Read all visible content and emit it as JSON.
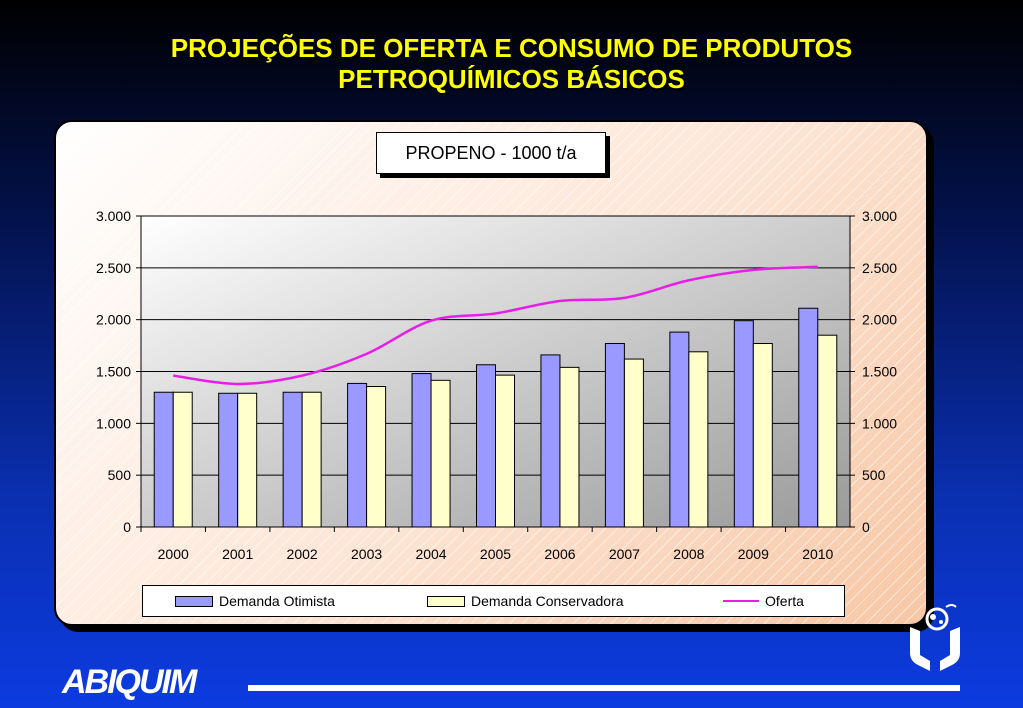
{
  "slide": {
    "title_line1": "PROJEÇÕES DE OFERTA E CONSUMO DE PRODUTOS",
    "title_line2": "PETROQUÍMICOS BÁSICOS",
    "brand": "ABIQUIM"
  },
  "chart_data": {
    "type": "bar",
    "title": "PROPENO - 1000 t/a",
    "categories": [
      "2000",
      "2001",
      "2002",
      "2003",
      "2004",
      "2005",
      "2006",
      "2007",
      "2008",
      "2009",
      "2010"
    ],
    "series": [
      {
        "name": "Demanda Otimista",
        "type": "bar",
        "color": "#9999ff",
        "values": [
          1300,
          1290,
          1300,
          1385,
          1480,
          1565,
          1660,
          1770,
          1880,
          1990,
          2110
        ]
      },
      {
        "name": "Demanda Conservadora",
        "type": "bar",
        "color": "#ffffcc",
        "values": [
          1300,
          1290,
          1300,
          1355,
          1415,
          1465,
          1540,
          1620,
          1690,
          1770,
          1850
        ]
      },
      {
        "name": "Oferta",
        "type": "line",
        "color": "#e81ee8",
        "values": [
          1460,
          1380,
          1460,
          1670,
          1990,
          2060,
          2180,
          2210,
          2380,
          2480,
          2510
        ]
      }
    ],
    "ylim": [
      0,
      3000
    ],
    "yticks": [
      0,
      500,
      1000,
      1500,
      2000,
      2500,
      3000
    ],
    "ytick_labels": [
      "0",
      "500",
      "1.000",
      "1.500",
      "2.000",
      "2.500",
      "3.000"
    ],
    "grid": "horizontal",
    "legend_position": "bottom",
    "secondary_y_axis": true
  }
}
